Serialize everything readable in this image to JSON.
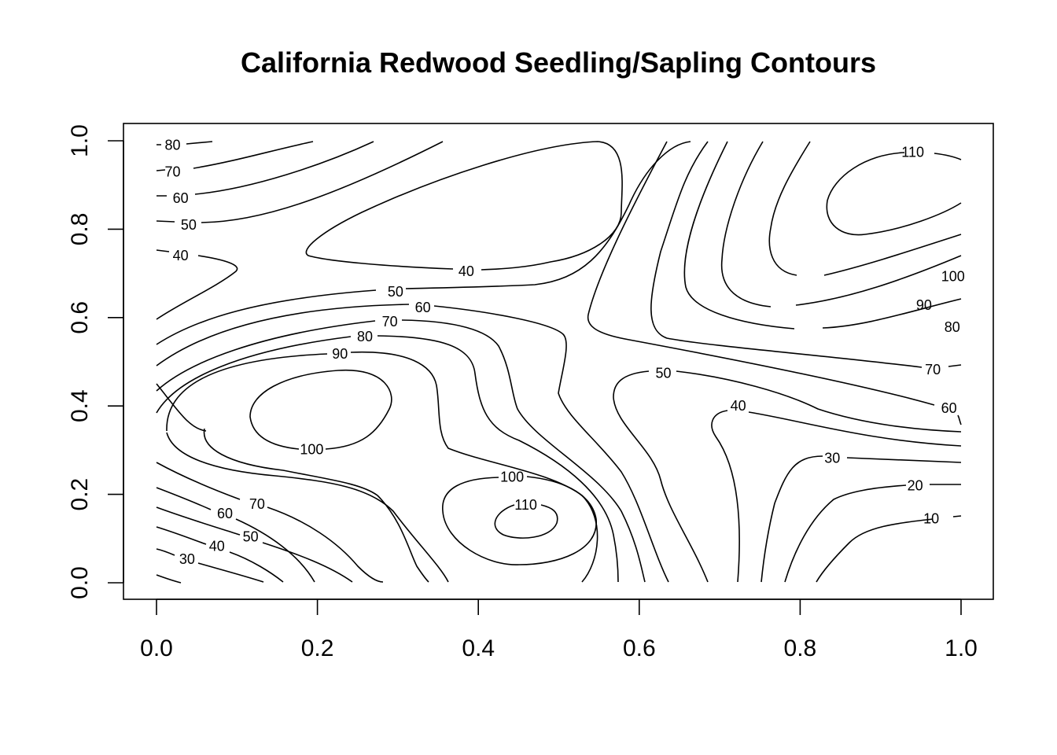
{
  "chart_data": {
    "type": "contour",
    "title": "California Redwood Seedling/Sapling Contours",
    "xlabel": "",
    "ylabel": "",
    "xlim": [
      0,
      1
    ],
    "ylim": [
      0,
      1
    ],
    "x_ticks": [
      "0.0",
      "0.2",
      "0.4",
      "0.6",
      "0.8",
      "1.0"
    ],
    "y_ticks": [
      "0.0",
      "0.2",
      "0.4",
      "0.6",
      "0.8",
      "1.0"
    ],
    "grid": false,
    "contour_levels": [
      10,
      20,
      30,
      40,
      50,
      60,
      70,
      80,
      90,
      100,
      110
    ],
    "contour_labels": [
      {
        "level": "80",
        "x": 0.02,
        "y": 0.99
      },
      {
        "level": "70",
        "x": 0.02,
        "y": 0.93
      },
      {
        "level": "60",
        "x": 0.03,
        "y": 0.87
      },
      {
        "level": "50",
        "x": 0.04,
        "y": 0.81
      },
      {
        "level": "40",
        "x": 0.03,
        "y": 0.74
      },
      {
        "level": "40",
        "x": 0.385,
        "y": 0.705
      },
      {
        "level": "50",
        "x": 0.297,
        "y": 0.658
      },
      {
        "level": "60",
        "x": 0.331,
        "y": 0.623
      },
      {
        "level": "70",
        "x": 0.29,
        "y": 0.591
      },
      {
        "level": "80",
        "x": 0.259,
        "y": 0.557
      },
      {
        "level": "90",
        "x": 0.228,
        "y": 0.518
      },
      {
        "level": "100",
        "x": 0.193,
        "y": 0.302
      },
      {
        "level": "100",
        "x": 0.442,
        "y": 0.239
      },
      {
        "level": "110",
        "x": 0.459,
        "y": 0.176
      },
      {
        "level": "70",
        "x": 0.125,
        "y": 0.178
      },
      {
        "level": "60",
        "x": 0.085,
        "y": 0.157
      },
      {
        "level": "50",
        "x": 0.117,
        "y": 0.104
      },
      {
        "level": "40",
        "x": 0.075,
        "y": 0.083
      },
      {
        "level": "30",
        "x": 0.038,
        "y": 0.053
      },
      {
        "level": "50",
        "x": 0.63,
        "y": 0.474
      },
      {
        "level": "40",
        "x": 0.723,
        "y": 0.4
      },
      {
        "level": "30",
        "x": 0.84,
        "y": 0.282
      },
      {
        "level": "20",
        "x": 0.943,
        "y": 0.22
      },
      {
        "level": "10",
        "x": 0.963,
        "y": 0.145
      },
      {
        "level": "110",
        "x": 0.94,
        "y": 0.974
      },
      {
        "level": "100",
        "x": 0.99,
        "y": 0.693
      },
      {
        "level": "90",
        "x": 0.954,
        "y": 0.628
      },
      {
        "level": "80",
        "x": 0.989,
        "y": 0.578
      },
      {
        "level": "70",
        "x": 0.965,
        "y": 0.482
      },
      {
        "level": "60",
        "x": 0.985,
        "y": 0.395
      }
    ]
  }
}
